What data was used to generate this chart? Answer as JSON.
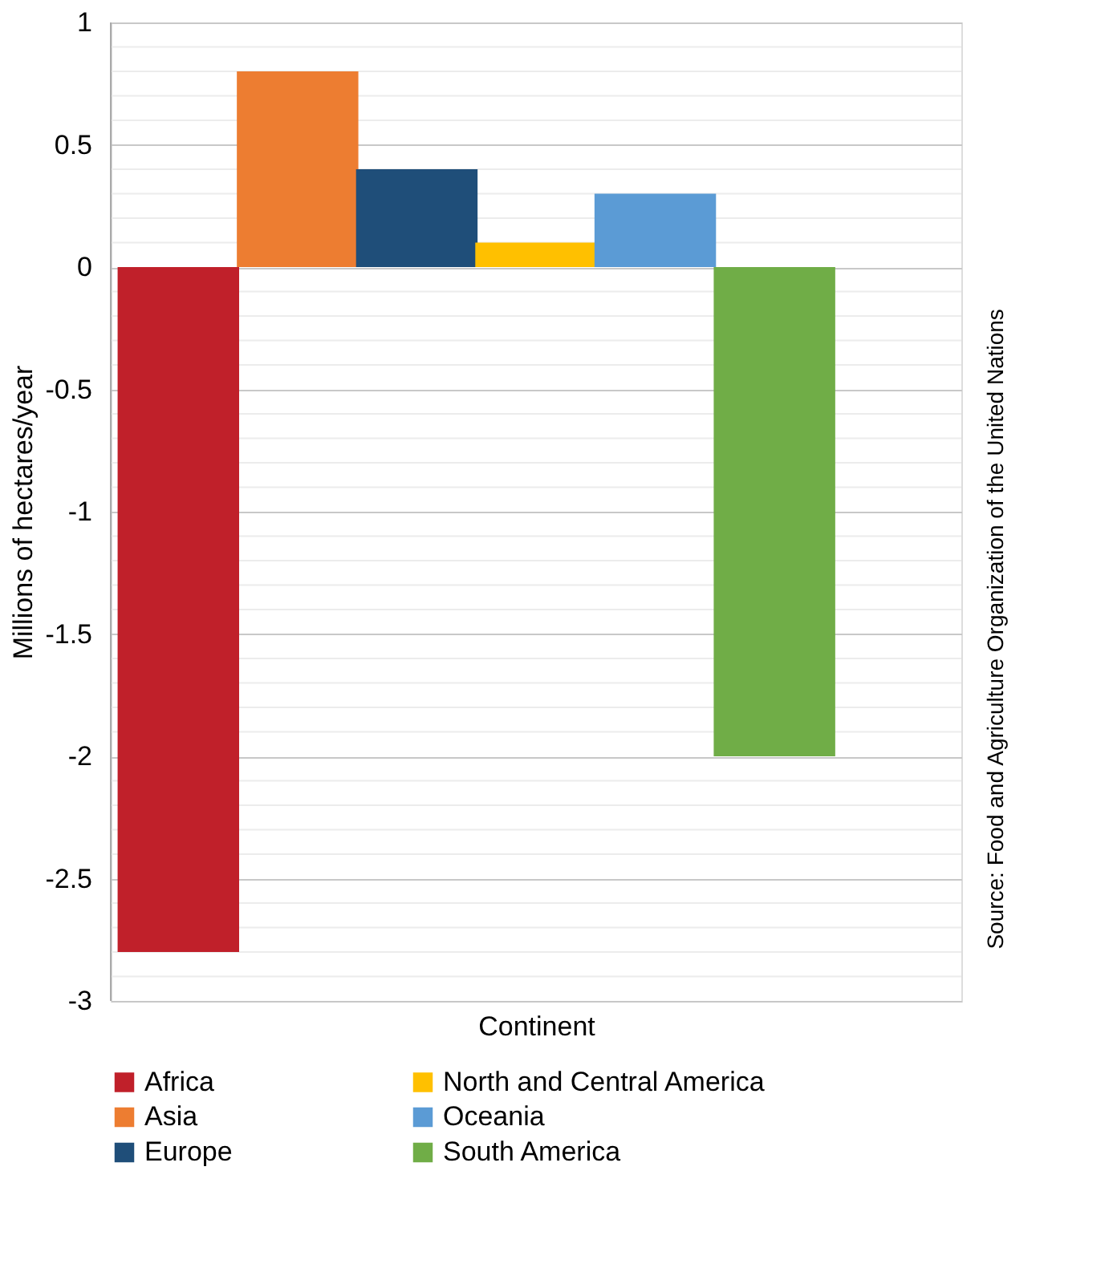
{
  "chart_data": {
    "type": "bar",
    "xlabel": "Continent",
    "ylabel": "Millions of hectares/year",
    "categories": [
      null
    ],
    "series": [
      {
        "name": "Africa",
        "color": "#c0202a",
        "values": [
          -2.8
        ]
      },
      {
        "name": "Asia",
        "color": "#ed7d31",
        "values": [
          0.8
        ]
      },
      {
        "name": "Europe",
        "color": "#1f4e79",
        "values": [
          0.4
        ]
      },
      {
        "name": "North and Central America",
        "color": "#ffc000",
        "values": [
          0.1
        ]
      },
      {
        "name": "Oceania",
        "color": "#5b9bd5",
        "values": [
          0.3
        ]
      },
      {
        "name": "South America",
        "color": "#70ad47",
        "values": [
          -2.0
        ]
      }
    ],
    "ylim": [
      -3,
      1
    ],
    "yticks": [
      -3,
      -2.5,
      -2,
      -1.5,
      -1,
      -0.5,
      0,
      0.5,
      1,
      {
        "value": -2.9,
        "label": null
      },
      {
        "value": -2.8,
        "label": null
      },
      {
        "value": -2.7,
        "label": null
      },
      {
        "value": -2.6,
        "label": null
      },
      {
        "value": -2.4,
        "label": null
      },
      {
        "value": -2.3,
        "label": null
      },
      {
        "value": -2.2,
        "label": null
      },
      {
        "value": -2.1,
        "label": null
      },
      {
        "value": -1.9,
        "label": null
      },
      {
        "value": -1.8,
        "label": null
      },
      {
        "value": -1.7,
        "label": null
      },
      {
        "value": -1.6,
        "label": null
      },
      {
        "value": -1.4,
        "label": null
      },
      {
        "value": -1.3,
        "label": null
      },
      {
        "value": -1.2,
        "label": null
      },
      {
        "value": -1.1,
        "label": null
      },
      {
        "value": -0.9,
        "label": null
      },
      {
        "value": -0.8,
        "label": null
      },
      {
        "value": -0.7,
        "label": null
      },
      {
        "value": -0.6,
        "label": null
      },
      {
        "value": -0.4,
        "label": null
      },
      {
        "value": -0.3,
        "label": null
      },
      {
        "value": -0.2,
        "label": null
      },
      {
        "value": -0.1,
        "label": null
      },
      {
        "value": 0.1,
        "label": null
      },
      {
        "value": 0.2,
        "label": null
      },
      {
        "value": 0.3,
        "label": null
      },
      {
        "value": 0.4,
        "label": null
      },
      {
        "value": 0.6,
        "label": null
      },
      {
        "value": 0.7,
        "label": null
      },
      {
        "value": 0.8,
        "label": null
      },
      {
        "value": 0.9,
        "label": null
      }
    ],
    "grid": "y",
    "legend": "bottom",
    "annotations": [
      "Source: Food and Agriculture Organization of the United Nations"
    ]
  }
}
